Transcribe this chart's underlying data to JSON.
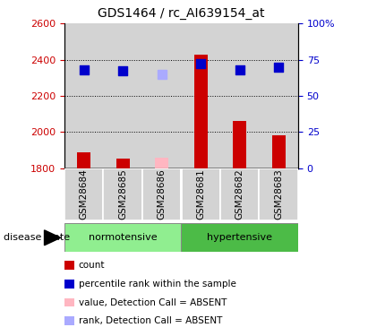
{
  "title": "GDS1464 / rc_AI639154_at",
  "samples": [
    "GSM28684",
    "GSM28685",
    "GSM28686",
    "GSM28681",
    "GSM28682",
    "GSM28683"
  ],
  "ylim_left": [
    1800,
    2600
  ],
  "ylim_right": [
    0,
    100
  ],
  "yticks_left": [
    1800,
    2000,
    2200,
    2400,
    2600
  ],
  "yticks_right": [
    0,
    25,
    50,
    75,
    100
  ],
  "ytick_labels_right": [
    "0",
    "25",
    "50",
    "75",
    "100%"
  ],
  "bar_values": [
    1885,
    1852,
    1855,
    2430,
    2060,
    1980
  ],
  "bar_colors": [
    "#CC0000",
    "#CC0000",
    "#FFB6C1",
    "#CC0000",
    "#CC0000",
    "#CC0000"
  ],
  "dot_values": [
    2345,
    2340,
    2320,
    2380,
    2345,
    2360
  ],
  "dot_colors": [
    "#0000CC",
    "#0000CC",
    "#AAAAFF",
    "#0000CC",
    "#0000CC",
    "#0000CC"
  ],
  "bar_width": 0.35,
  "dot_size": 45,
  "sample_box_color": "#D3D3D3",
  "norm_color": "#90EE90",
  "hyper_color": "#4CBB47",
  "axis_color_left": "#CC0000",
  "axis_color_right": "#0000CC",
  "legend_labels": [
    "count",
    "percentile rank within the sample",
    "value, Detection Call = ABSENT",
    "rank, Detection Call = ABSENT"
  ],
  "legend_colors": [
    "#CC0000",
    "#0000CC",
    "#FFB6C1",
    "#AAAAFF"
  ],
  "dotted_lines": [
    2000,
    2200,
    2400
  ]
}
